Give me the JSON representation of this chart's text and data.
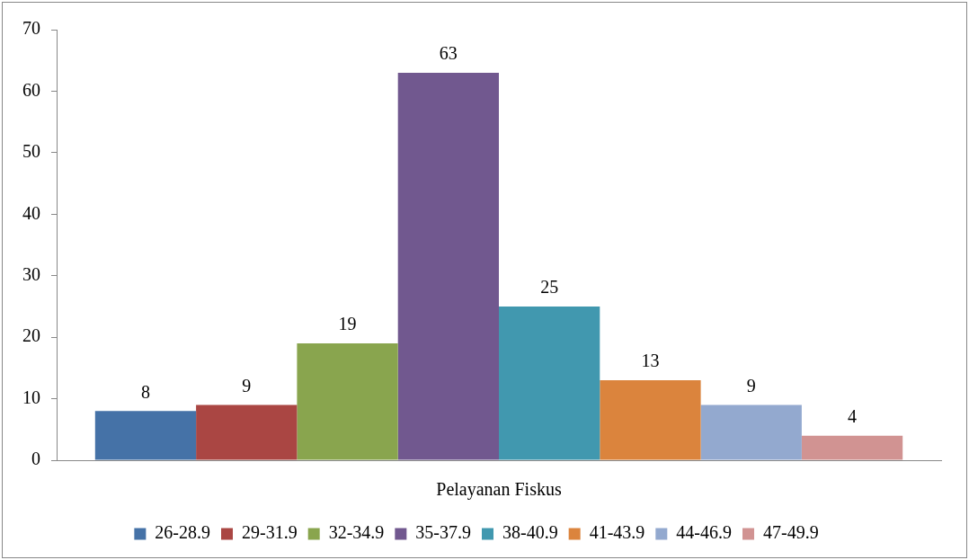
{
  "chart_data": {
    "type": "bar",
    "xlabel": null,
    "categories": [
      "Pelayanan Fiskus"
    ],
    "series": [
      {
        "name": "26-28.9",
        "color": "#4572a7",
        "values": [
          8
        ]
      },
      {
        "name": "29-31.9",
        "color": "#aa4643",
        "values": [
          9
        ]
      },
      {
        "name": "32-34.9",
        "color": "#89a54e",
        "values": [
          19
        ]
      },
      {
        "name": "35-37.9",
        "color": "#71588f",
        "values": [
          63
        ]
      },
      {
        "name": "38-40.9",
        "color": "#4198af",
        "values": [
          25
        ]
      },
      {
        "name": "41-43.9",
        "color": "#db843d",
        "values": [
          13
        ]
      },
      {
        "name": "44-46.9",
        "color": "#93a9cf",
        "values": [
          9
        ]
      },
      {
        "name": "47-49.9",
        "color": "#d19392",
        "values": [
          4
        ]
      }
    ],
    "ylim": [
      0,
      70
    ],
    "yticks": [
      0,
      10,
      20,
      30,
      40,
      50,
      60,
      70
    ],
    "grid": false,
    "legend": "bottom",
    "data_labels": true
  }
}
